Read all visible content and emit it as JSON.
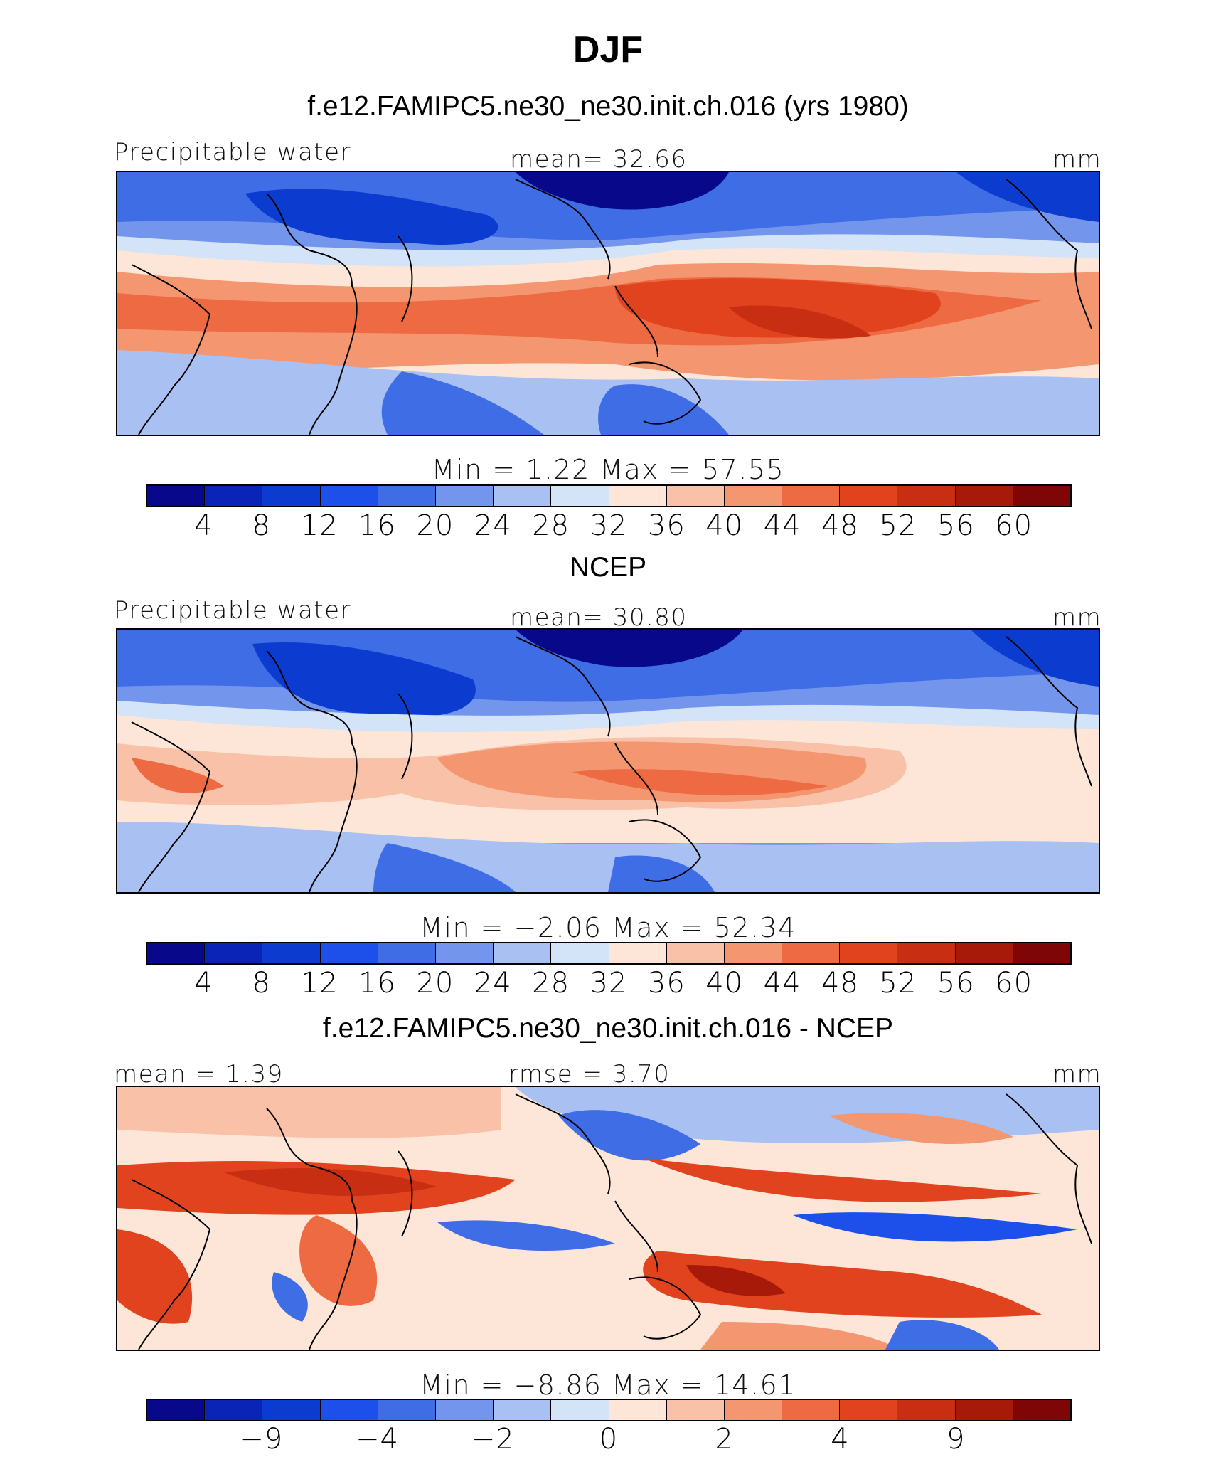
{
  "figure": {
    "title": "DJF"
  },
  "colors": {
    "panel_palette": [
      "#08088a",
      "#0a24b8",
      "#0b3ccf",
      "#1d50ea",
      "#3f6de6",
      "#7396ec",
      "#a9c0f2",
      "#d4e4f8",
      "#fde6d8",
      "#f9c1a7",
      "#f4966f",
      "#ee6a42",
      "#e0431e",
      "#c72e12",
      "#a71a0a",
      "#7f0606"
    ],
    "diff_palette": [
      "#08088a",
      "#0a24b8",
      "#0b3ccf",
      "#1d50ea",
      "#3f6de6",
      "#7396ec",
      "#a9c0f2",
      "#d4e4f8",
      "#fde6d8",
      "#f9c1a7",
      "#f4966f",
      "#ee6a42",
      "#e0431e",
      "#c72e12",
      "#a71a0a",
      "#7f0606"
    ],
    "coastline": "#000000"
  },
  "panels": [
    {
      "subtitle": "f.e12.FAMIPC5.ne30_ne30.init.ch.016 (yrs 1980)",
      "left_label": "Precipitable water",
      "center_label": "mean=   32.66",
      "right_label": "mm",
      "minmax": "Min  =     1.22  Max  =    57.55",
      "tick_labels": [
        "4",
        "8",
        "12",
        "16",
        "20",
        "24",
        "28",
        "32",
        "36",
        "40",
        "44",
        "48",
        "52",
        "56",
        "60"
      ]
    },
    {
      "subtitle": "NCEP",
      "left_label": "Precipitable water",
      "center_label": "mean=   30.80",
      "right_label": "mm",
      "minmax": "Min  =   −2.06  Max  =    52.34",
      "tick_labels": [
        "4",
        "8",
        "12",
        "16",
        "20",
        "24",
        "28",
        "32",
        "36",
        "40",
        "44",
        "48",
        "52",
        "56",
        "60"
      ]
    },
    {
      "subtitle": "f.e12.FAMIPC5.ne30_ne30.init.ch.016 - NCEP",
      "left_label": "mean  =     1.39",
      "center_label": "rmse  =     3.70",
      "right_label": "mm",
      "minmax": "Min  =   −8.86  Max  =    14.61",
      "tick_labels": [
        "−9",
        "−4",
        "−2",
        "0",
        "2",
        "4",
        "9"
      ]
    }
  ],
  "chart_data": [
    {
      "type": "heatmap",
      "title": "f.e12.FAMIPC5.ne30_ne30.init.ch.016 (yrs 1980)",
      "variable": "Precipitable water",
      "units": "mm",
      "mean": 32.66,
      "min": 1.22,
      "max": 57.55,
      "levels": [
        4,
        8,
        12,
        16,
        20,
        24,
        28,
        32,
        36,
        40,
        44,
        48,
        52,
        56,
        60
      ]
    },
    {
      "type": "heatmap",
      "title": "NCEP",
      "variable": "Precipitable water",
      "units": "mm",
      "mean": 30.8,
      "min": -2.06,
      "max": 52.34,
      "levels": [
        4,
        8,
        12,
        16,
        20,
        24,
        28,
        32,
        36,
        40,
        44,
        48,
        52,
        56,
        60
      ]
    },
    {
      "type": "heatmap",
      "title": "f.e12.FAMIPC5.ne30_ne30.init.ch.016 - NCEP",
      "units": "mm",
      "mean": 1.39,
      "rmse": 3.7,
      "min": -8.86,
      "max": 14.61,
      "levels": [
        -9,
        -4,
        -2,
        0,
        2,
        4,
        9
      ]
    }
  ]
}
